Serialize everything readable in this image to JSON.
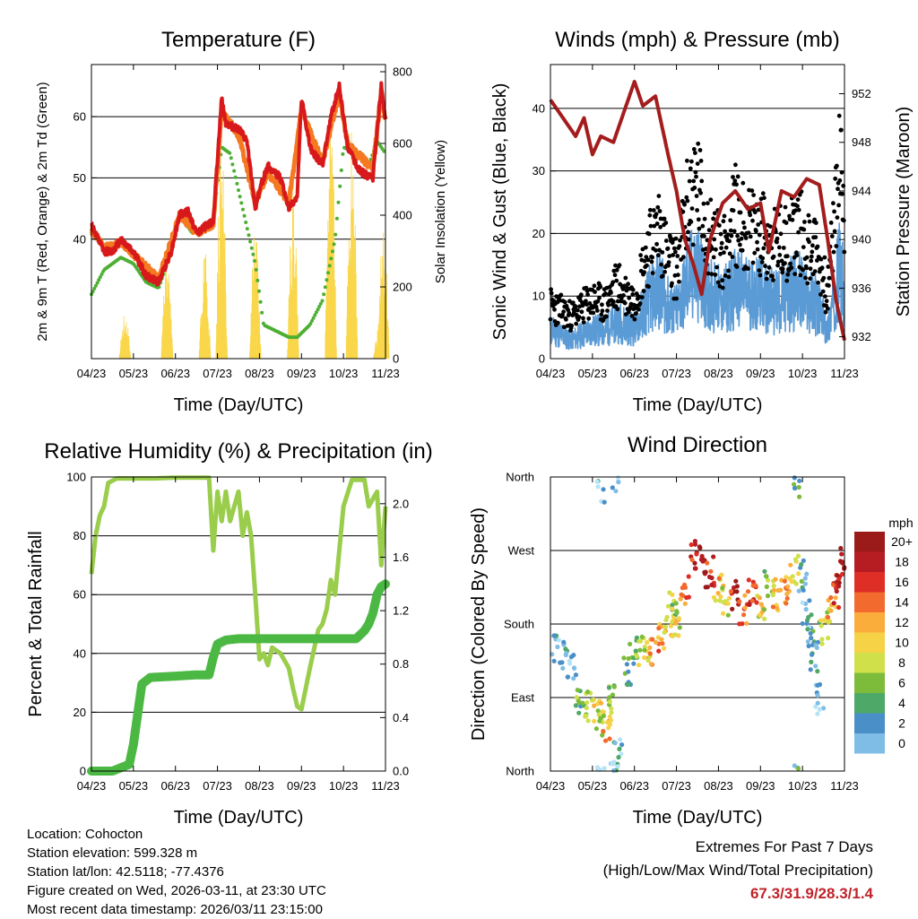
{
  "charts": {
    "temperature": {
      "title": "Temperature (F)",
      "ylabel_left": "2m & 9m T (Red, Orange) & 2m Td (Green)",
      "ylabel_right": "Solar Insolation (Yellow)",
      "xlabel": "Time (Day/UTC)",
      "left_ticks": [
        "40",
        "50",
        "60"
      ],
      "right_ticks": [
        "0",
        "200",
        "400",
        "600",
        "800"
      ]
    },
    "winds": {
      "title": "Winds (mph) & Pressure (mb)",
      "ylabel_left": "Sonic Wind & Gust (Blue, Black)",
      "ylabel_right": "Station Pressure (Maroon)",
      "xlabel": "Time (Day/UTC)",
      "left_ticks": [
        "0",
        "10",
        "20",
        "30",
        "40"
      ],
      "right_ticks": [
        "932",
        "936",
        "940",
        "944",
        "948",
        "952"
      ]
    },
    "humidity": {
      "title": "Relative Humidity (%) & Precipitation (in)",
      "ylabel_left": "Percent & Total Rainfall",
      "xlabel": "Time (Day/UTC)",
      "left_ticks": [
        "0",
        "20",
        "40",
        "60",
        "80",
        "100"
      ],
      "right_ticks": [
        "0.0",
        "0.4",
        "0.8",
        "1.2",
        "1.6",
        "2.0"
      ]
    },
    "direction": {
      "title": "Wind Direction",
      "ylabel_left": "Direction (Colored By Speed)",
      "xlabel": "Time (Day/UTC)",
      "dir_ticks": [
        "North",
        "East",
        "South",
        "West",
        "North"
      ],
      "legend_title": "mph",
      "legend_labels": [
        "20+",
        "18",
        "16",
        "14",
        "12",
        "10",
        "8",
        "6",
        "4",
        "2",
        "0"
      ]
    }
  },
  "x_ticks": [
    "04/23",
    "05/23",
    "06/23",
    "07/23",
    "08/23",
    "09/23",
    "10/23",
    "11/23"
  ],
  "colors": {
    "temp2m": "#d7191c",
    "temp9m": "#f47920",
    "dewpoint": "#4daf33",
    "solar": "#f9d64a",
    "gust": "#000000",
    "wind": "#5b9bd5",
    "pressure": "#a31d1d",
    "rh": "#9acd4c",
    "precip": "#4cb844",
    "scale": [
      "#b7e3f7",
      "#80bde6",
      "#4a8fc7",
      "#4ea868",
      "#7cbc3a",
      "#cfe04a",
      "#f6d247",
      "#fbad3c",
      "#f26a2e",
      "#de2e26",
      "#b51d23",
      "#9b1a1a"
    ]
  },
  "chart_data": [
    {
      "type": "line",
      "name": "temperature",
      "x_categories": [
        "04/23",
        "05/23",
        "06/23",
        "07/23",
        "08/23",
        "09/23",
        "10/23",
        "11/23"
      ],
      "ylim_left": [
        20.5,
        68.5
      ],
      "ylim_right": [
        0,
        820
      ],
      "series": [
        {
          "name": "2m T (Red)",
          "x": [
            0,
            0.15,
            0.3,
            0.5,
            0.7,
            1.0,
            1.3,
            1.6,
            1.9,
            2.1,
            2.3,
            2.5,
            2.7,
            2.9,
            3.1,
            3.2,
            3.3,
            3.5,
            3.7,
            3.9,
            4.0,
            4.2,
            4.5,
            4.7,
            4.9,
            5.0,
            5.2,
            5.5,
            5.7,
            5.9,
            6.1,
            6.4,
            6.7,
            6.9,
            7.0
          ],
          "values": [
            42.5,
            40,
            38,
            38,
            40,
            38,
            34,
            33,
            38,
            44,
            44.5,
            41,
            42,
            43,
            63,
            59,
            58.5,
            58,
            56,
            45,
            48,
            52,
            50,
            45,
            47,
            63,
            55,
            52,
            60,
            65,
            55,
            51,
            50,
            65,
            59
          ]
        },
        {
          "name": "9m T (Orange)",
          "x": [
            0,
            0.3,
            0.7,
            1.0,
            1.6,
            2.1,
            2.5,
            2.9,
            3.1,
            3.5,
            3.9,
            4.2,
            4.7,
            5.0,
            5.5,
            5.9,
            6.1,
            6.7,
            6.9,
            7.0
          ],
          "values": [
            41.5,
            38.5,
            39.5,
            37.5,
            33.5,
            44,
            41,
            42.5,
            61,
            57,
            46,
            51,
            46,
            61,
            52.5,
            64,
            55.5,
            51.5,
            64,
            59
          ]
        },
        {
          "name": "2m Td (Green)",
          "x": [
            0,
            0.3,
            0.7,
            1.0,
            1.3,
            1.6,
            1.9,
            2.1,
            2.4,
            2.7,
            2.9,
            3.1,
            3.3,
            3.5,
            3.7,
            3.9,
            4.1,
            4.4,
            4.7,
            4.9,
            5.2,
            5.5,
            5.8,
            6.0,
            6.3,
            6.6,
            6.8,
            7.0
          ],
          "values": [
            31,
            35,
            37,
            36,
            33,
            32,
            38,
            44,
            41,
            42,
            43,
            55,
            54,
            48,
            42,
            36,
            26,
            25,
            24,
            24,
            26,
            30,
            40,
            55,
            54,
            52,
            56,
            54
          ]
        },
        {
          "name": "Solar Insolation (Yellow)",
          "axis": "right",
          "peaks": [
            {
              "x": 0.8,
              "v": 130
            },
            {
              "x": 1.8,
              "v": 300
            },
            {
              "x": 2.7,
              "v": 300
            },
            {
              "x": 3.1,
              "v": 650
            },
            {
              "x": 3.9,
              "v": 360
            },
            {
              "x": 4.8,
              "v": 500
            },
            {
              "x": 5.7,
              "v": 680
            },
            {
              "x": 6.2,
              "v": 650
            },
            {
              "x": 6.85,
              "v": 100
            },
            {
              "x": 6.95,
              "v": 400
            }
          ]
        }
      ]
    },
    {
      "type": "line",
      "name": "winds_pressure",
      "x_categories": [
        "04/23",
        "05/23",
        "06/23",
        "07/23",
        "08/23",
        "09/23",
        "10/23",
        "11/23"
      ],
      "ylim_left": [
        0,
        47
      ],
      "ylim_right": [
        930.2,
        954.4
      ],
      "series": [
        {
          "name": "Station Pressure (Maroon)",
          "axis": "right",
          "x": [
            0,
            0.3,
            0.6,
            0.8,
            1.0,
            1.2,
            1.5,
            1.8,
            2.0,
            2.2,
            2.5,
            2.8,
            3.0,
            3.2,
            3.4,
            3.6,
            3.8,
            4.1,
            4.4,
            4.7,
            5.0,
            5.2,
            5.5,
            5.8,
            6.1,
            6.4,
            6.6,
            6.8,
            7.0
          ],
          "values": [
            951.5,
            950,
            948.5,
            950,
            947,
            948.5,
            948,
            951,
            953,
            951,
            951.8,
            947,
            944,
            940,
            938,
            935.5,
            940,
            943,
            944,
            942.5,
            943,
            939,
            944,
            943.5,
            945,
            944.5,
            940,
            935,
            931.7
          ]
        },
        {
          "name": "Gust (Black)",
          "x": [
            0,
            0.5,
            1.0,
            1.3,
            1.6,
            1.8,
            2.0,
            2.3,
            2.6,
            2.8,
            3.0,
            3.3,
            3.5,
            3.6,
            3.8,
            4.1,
            4.4,
            4.7,
            5.0,
            5.3,
            5.6,
            5.9,
            6.1,
            6.3,
            6.6,
            6.9,
            7.0
          ],
          "values": [
            10,
            8,
            11,
            10,
            14,
            12,
            11,
            20,
            25,
            18,
            17,
            30,
            33,
            28,
            23,
            20,
            27,
            24,
            24,
            21,
            22,
            25,
            21,
            21,
            12,
            38,
            21
          ]
        },
        {
          "name": "Wind (Blue)",
          "x": [
            0,
            0.5,
            1.0,
            1.3,
            1.6,
            1.8,
            2.0,
            2.3,
            2.6,
            2.8,
            3.0,
            3.3,
            3.5,
            3.6,
            3.8,
            4.1,
            4.4,
            4.7,
            5.0,
            5.3,
            5.6,
            5.9,
            6.1,
            6.3,
            6.6,
            6.9,
            7.0
          ],
          "values": [
            6,
            4,
            6,
            6,
            8,
            7,
            6,
            12,
            15,
            11,
            10,
            17,
            19,
            16,
            14,
            12,
            15,
            14,
            14,
            12,
            13,
            15,
            12,
            12,
            6,
            20,
            12
          ]
        }
      ]
    },
    {
      "type": "line",
      "name": "humidity_precip",
      "x_categories": [
        "04/23",
        "05/23",
        "06/23",
        "07/23",
        "08/23",
        "09/23",
        "10/23",
        "11/23"
      ],
      "ylim_left": [
        0,
        100
      ],
      "ylim_right": [
        0,
        2.2
      ],
      "series": [
        {
          "name": "Relative Humidity (Light Green)",
          "x": [
            0,
            0.1,
            0.2,
            0.3,
            0.4,
            0.6,
            0.8,
            1.0,
            1.5,
            2.0,
            2.5,
            2.8,
            2.9,
            3.0,
            3.1,
            3.2,
            3.3,
            3.5,
            3.6,
            3.7,
            3.8,
            3.9,
            4.0,
            4.1,
            4.2,
            4.3,
            4.5,
            4.7,
            4.8,
            4.9,
            5.0,
            5.2,
            5.4,
            5.5,
            5.6,
            5.7,
            5.8,
            6.0,
            6.2,
            6.5,
            6.6,
            6.8,
            6.9,
            7.0
          ],
          "values": [
            67,
            80,
            87,
            90,
            98,
            99.5,
            99.5,
            99.5,
            99.5,
            99.8,
            99.8,
            99.8,
            75,
            95,
            85,
            95,
            85,
            95,
            80,
            88,
            80,
            60,
            38,
            40,
            36,
            42,
            40,
            35,
            28,
            22,
            21,
            35,
            48,
            50,
            55,
            65,
            60,
            90,
            99,
            99,
            90,
            95,
            70,
            90
          ]
        },
        {
          "name": "Total Precipitation (Green)",
          "axis": "right",
          "x": [
            0,
            0.5,
            0.9,
            1.0,
            1.2,
            1.4,
            2.0,
            2.5,
            2.8,
            2.9,
            3.0,
            3.2,
            3.5,
            4.0,
            5.0,
            6.0,
            6.3,
            6.5,
            6.6,
            6.7,
            6.8,
            6.9,
            7.0
          ],
          "values": [
            0,
            0,
            0.05,
            0.2,
            0.65,
            0.7,
            0.71,
            0.72,
            0.72,
            0.85,
            0.95,
            0.98,
            0.99,
            0.99,
            0.99,
            0.99,
            0.99,
            1.05,
            1.1,
            1.18,
            1.32,
            1.38,
            1.4
          ]
        }
      ]
    },
    {
      "type": "scatter",
      "name": "wind_direction",
      "x_categories": [
        "04/23",
        "05/23",
        "06/23",
        "07/23",
        "08/23",
        "09/23",
        "10/23",
        "11/23"
      ],
      "ylim": [
        0,
        360
      ],
      "color_scale_mph": [
        0,
        20
      ],
      "points": [
        [
          0.1,
          150,
          3
        ],
        [
          0.3,
          140,
          4
        ],
        [
          0.5,
          130,
          2
        ],
        [
          0.7,
          90,
          6
        ],
        [
          0.9,
          80,
          8
        ],
        [
          1.1,
          70,
          10
        ],
        [
          1.2,
          60,
          8
        ],
        [
          1.35,
          55,
          12
        ],
        [
          1.5,
          85,
          7
        ],
        [
          1.6,
          20,
          3
        ],
        [
          1.55,
          350,
          3
        ],
        [
          1.2,
          345,
          2
        ],
        [
          1.8,
          120,
          5
        ],
        [
          2.0,
          150,
          7
        ],
        [
          2.2,
          145,
          9
        ],
        [
          2.4,
          150,
          12
        ],
        [
          2.6,
          160,
          13
        ],
        [
          2.8,
          170,
          11
        ],
        [
          2.9,
          210,
          8
        ],
        [
          3.0,
          185,
          10
        ],
        [
          3.2,
          220,
          14
        ],
        [
          3.4,
          265,
          18
        ],
        [
          3.6,
          260,
          20
        ],
        [
          3.8,
          245,
          17
        ],
        [
          4.0,
          225,
          12
        ],
        [
          4.2,
          210,
          10
        ],
        [
          4.4,
          215,
          18
        ],
        [
          4.6,
          200,
          14
        ],
        [
          4.8,
          215,
          16
        ],
        [
          5.0,
          205,
          10
        ],
        [
          5.2,
          230,
          9
        ],
        [
          5.4,
          215,
          12
        ],
        [
          5.6,
          220,
          13
        ],
        [
          5.8,
          245,
          11
        ],
        [
          5.9,
          350,
          5
        ],
        [
          6.0,
          240,
          4
        ],
        [
          6.1,
          190,
          3
        ],
        [
          6.2,
          170,
          5
        ],
        [
          6.3,
          140,
          4
        ],
        [
          6.4,
          90,
          2
        ],
        [
          6.5,
          175,
          9
        ],
        [
          6.7,
          200,
          12
        ],
        [
          6.8,
          220,
          16
        ],
        [
          6.9,
          240,
          19
        ],
        [
          7.0,
          265,
          20
        ]
      ]
    }
  ],
  "info": {
    "location": "Location: Cohocton",
    "elevation": "Station elevation: 599.328 m",
    "latlon": "Station lat/lon: 42.5118; -77.4376",
    "created": "Figure created on Wed, 2026-03-11, at 23:30 UTC",
    "timestamp": "Most recent data timestamp: 2026/03/11 23:15:00"
  },
  "extremes": {
    "title": "Extremes For Past 7 Days",
    "subtitle": "(High/Low/Max Wind/Total Precipitation)",
    "values": "67.3/31.9/28.3/1.4"
  }
}
